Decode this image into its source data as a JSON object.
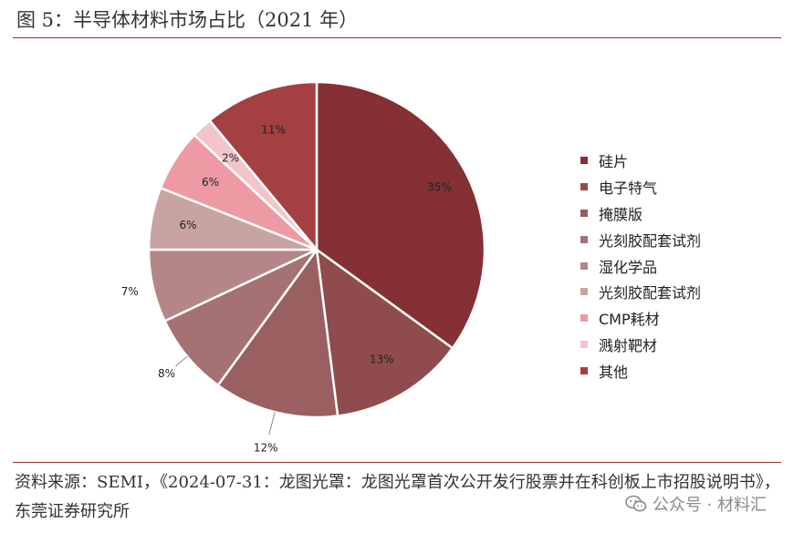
{
  "figure": {
    "title": "图 5：半导体材料市场占比（2021 年）",
    "source_text": "资料来源：SEMI，《2024-07-31：龙图光罩：龙图光罩首次公开发行股票并在科创板上市招股说明书》，东莞证券研究所",
    "watermark": "公众号 · 材料汇",
    "accent_color": "#9c2a33"
  },
  "chart_data": {
    "type": "pie",
    "title": "",
    "slices": [
      {
        "label": "硅片",
        "value": 35,
        "display": "35%",
        "color": "#843035"
      },
      {
        "label": "电子特气",
        "value": 13,
        "display": "13%",
        "color": "#8f4b4d"
      },
      {
        "label": "掩膜版",
        "value": 12,
        "display": "12%",
        "color": "#9a5f60"
      },
      {
        "label": "光刻胶配套试剂",
        "value": 8,
        "display": "8%",
        "color": "#a67172"
      },
      {
        "label": "湿化学品",
        "value": 7,
        "display": "7%",
        "color": "#b48687"
      },
      {
        "label": "光刻胶配套试剂",
        "value": 6,
        "display": "6%",
        "color": "#c7a4a2"
      },
      {
        "label": "CMP耗材",
        "value": 6,
        "display": "6%",
        "color": "#ee9aa4"
      },
      {
        "label": "溅射靶材",
        "value": 2,
        "display": "2%",
        "color": "#f4c4cb"
      },
      {
        "label": "其他",
        "value": 11,
        "display": "11%",
        "color": "#a43f42"
      }
    ],
    "legend_position": "right"
  }
}
